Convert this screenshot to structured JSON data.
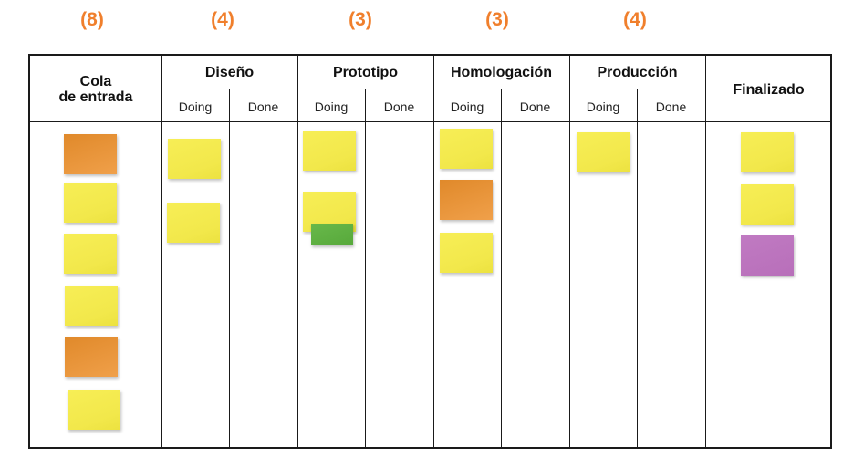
{
  "wip_limits": [
    "(8)",
    "(4)",
    "(3)",
    "(3)",
    "(4)"
  ],
  "columns": {
    "cola": "Cola\nde entrada",
    "diseno": "Diseño",
    "prototipo": "Prototipo",
    "homologacion": "Homologación",
    "produccion": "Producción",
    "finalizado": "Finalizado"
  },
  "sub_labels": {
    "doing": "Doing",
    "done": "Done"
  },
  "colors": {
    "wip": "#f07f2c",
    "yellow": "#f2e84b",
    "orange": "#ea9a3c",
    "purple": "#bb73bd",
    "green": "#5cae3f",
    "border": "#1a1a1a"
  }
}
